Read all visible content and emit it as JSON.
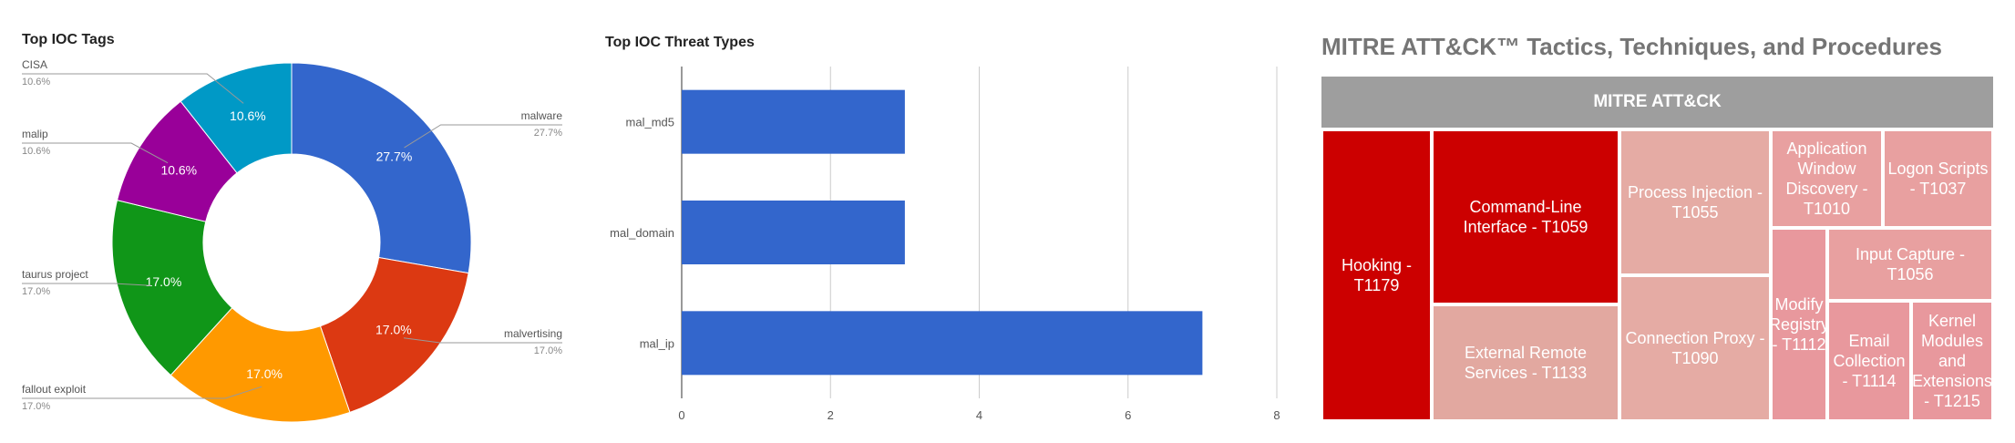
{
  "chart_data": [
    {
      "type": "pie",
      "title": "Top IOC Tags",
      "donut": true,
      "slices": [
        {
          "label": "malware",
          "value": 27.7,
          "pct": "27.7%",
          "color": "#3366cc"
        },
        {
          "label": "malvertising",
          "value": 17.0,
          "pct": "17.0%",
          "color": "#dc3912"
        },
        {
          "label": "fallout exploit",
          "value": 17.0,
          "pct": "17.0%",
          "color": "#ff9900"
        },
        {
          "label": "taurus project",
          "value": 17.0,
          "pct": "17.0%",
          "color": "#109618"
        },
        {
          "label": "malip",
          "value": 10.6,
          "pct": "10.6%",
          "color": "#990099"
        },
        {
          "label": "CISA",
          "value": 10.6,
          "pct": "10.6%",
          "color": "#0099c6"
        }
      ],
      "legend_position": "labeled"
    },
    {
      "type": "bar",
      "orientation": "horizontal",
      "title": "Top IOC Threat Types",
      "categories": [
        "mal_md5",
        "mal_domain",
        "mal_ip"
      ],
      "values": [
        3,
        3,
        7
      ],
      "xlim": [
        0,
        8
      ],
      "xticks": [
        "0",
        "2",
        "4",
        "6",
        "8"
      ],
      "grid": true,
      "color": "#3366cc"
    },
    {
      "type": "treemap",
      "title": "MITRE ATT&CK™ Tactics, Techniques, and Procedures",
      "root": "MITRE ATT&CK",
      "items": [
        {
          "label": "Hooking - T1179",
          "color": "#cc0000"
        },
        {
          "label": "Command-Line Interface - T1059",
          "color": "#cc0000"
        },
        {
          "label": "External Remote Services - T1133",
          "color": "#e2a8a0"
        },
        {
          "label": "Process Injection - T1055",
          "color": "#e5aba4"
        },
        {
          "label": "Connection Proxy - T1090",
          "color": "#e5aba4"
        },
        {
          "label": "Application Window Discovery - T1010",
          "color": "#e8a0a0"
        },
        {
          "label": "Logon Scripts - T1037",
          "color": "#e8a0a0"
        },
        {
          "label": "Modify Registry - T1112",
          "color": "#e8989d"
        },
        {
          "label": "Input Capture - T1056",
          "color": "#e8a0a0"
        },
        {
          "label": "Email Collection - T1114",
          "color": "#e8989d"
        },
        {
          "label": "Kernel Modules and Extensions - T1215",
          "color": "#e8989d"
        }
      ]
    }
  ]
}
